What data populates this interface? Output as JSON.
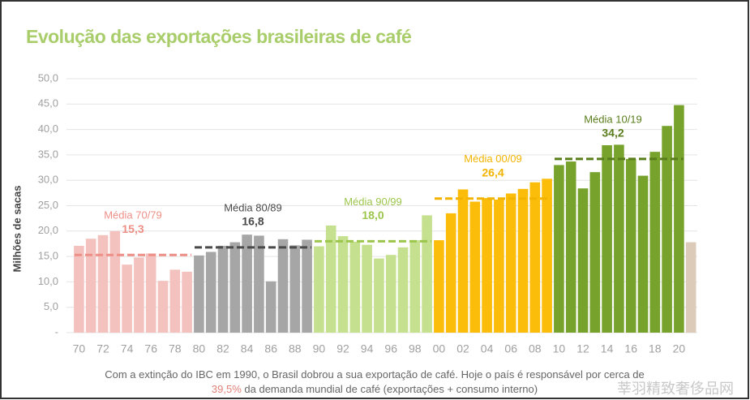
{
  "chart_data": {
    "type": "bar",
    "title": "Evolução das exportações brasileiras de café",
    "y_label": "Milhões de sacas",
    "categories": [
      "70",
      null,
      "72",
      null,
      "74",
      null,
      "76",
      null,
      "78",
      null,
      "80",
      null,
      "82",
      null,
      "84",
      null,
      "86",
      null,
      "88",
      null,
      "90",
      null,
      "92",
      null,
      "94",
      null,
      "96",
      null,
      "98",
      null,
      "00",
      null,
      "02",
      null,
      "04",
      null,
      "06",
      null,
      "08",
      null,
      "10",
      null,
      "12",
      null,
      "14",
      null,
      "16",
      null,
      "18",
      null,
      "20",
      null
    ],
    "values": [
      17.1,
      18.5,
      19.2,
      20.0,
      13.4,
      14.8,
      15.6,
      10.2,
      12.4,
      12.0,
      15.2,
      15.9,
      17.1,
      17.8,
      19.3,
      19.1,
      10.1,
      18.4,
      17.2,
      18.3,
      17.0,
      21.1,
      19.0,
      17.9,
      17.3,
      14.6,
      15.3,
      16.8,
      18.2,
      23.1,
      18.2,
      23.5,
      28.2,
      25.8,
      26.5,
      26.2,
      27.4,
      28.3,
      29.6,
      30.3,
      33.0,
      33.7,
      28.4,
      31.6,
      36.9,
      37.0,
      34.2,
      30.9,
      35.6,
      40.7,
      44.8,
      17.8
    ],
    "colors": [
      "#f4c2be",
      "#f4c2be",
      "#f4c2be",
      "#f4c2be",
      "#f4c2be",
      "#f4c2be",
      "#f4c2be",
      "#f4c2be",
      "#f4c2be",
      "#f4c2be",
      "#a6a6a6",
      "#a6a6a6",
      "#a6a6a6",
      "#a6a6a6",
      "#a6a6a6",
      "#a6a6a6",
      "#a6a6a6",
      "#a6a6a6",
      "#a6a6a6",
      "#a6a6a6",
      "#c5e08e",
      "#c5e08e",
      "#c5e08e",
      "#c5e08e",
      "#c5e08e",
      "#c5e08e",
      "#c5e08e",
      "#c5e08e",
      "#c5e08e",
      "#c5e08e",
      "#fbbd09",
      "#fbbd09",
      "#fbbd09",
      "#fbbd09",
      "#fbbd09",
      "#fbbd09",
      "#fbbd09",
      "#fbbd09",
      "#fbbd09",
      "#fbbd09",
      "#77a22c",
      "#77a22c",
      "#77a22c",
      "#77a22c",
      "#77a22c",
      "#77a22c",
      "#77a22c",
      "#77a22c",
      "#77a22c",
      "#77a22c",
      "#77a22c",
      "#dccbb8"
    ],
    "ylim": [
      0,
      50
    ],
    "yticks": [
      {
        "value": 0,
        "label": "-"
      },
      {
        "value": 5,
        "label": "5,0"
      },
      {
        "value": 10,
        "label": "10,0"
      },
      {
        "value": 15,
        "label": "15,0"
      },
      {
        "value": 20,
        "label": "20,0"
      },
      {
        "value": 25,
        "label": "25,0"
      },
      {
        "value": 30,
        "label": "30,0"
      },
      {
        "value": 35,
        "label": "35,0"
      },
      {
        "value": 40,
        "label": "40,0"
      },
      {
        "value": 45,
        "label": "45,0"
      },
      {
        "value": 50,
        "label": "50,0"
      }
    ],
    "grid": true,
    "averages": [
      {
        "label": "Média 70/79",
        "value": 15.3,
        "value_label": "15,3",
        "color": "#ee8f87"
      },
      {
        "label": "Média 80/89",
        "value": 16.8,
        "value_label": "16,8",
        "color": "#4a4a4a"
      },
      {
        "label": "Média 90/99",
        "value": 18.0,
        "value_label": "18,0",
        "color": "#9cc64c"
      },
      {
        "label": "Média 00/09",
        "value": 26.4,
        "value_label": "26,4",
        "color": "#f2b400"
      },
      {
        "label": "Média 10/19",
        "value": 34.2,
        "value_label": "34,2",
        "color": "#5a7d1c"
      }
    ],
    "footnote": {
      "line1": "Com a extinção do IBC em 1990, o Brasil dobrou a sua exportação de café. Hoje o país é responsável por cerca de",
      "highlight": "39,5%",
      "line2": " da demanda mundial de café (exportações + consumo interno)"
    },
    "watermark": "莘羽精致奢侈品网"
  }
}
